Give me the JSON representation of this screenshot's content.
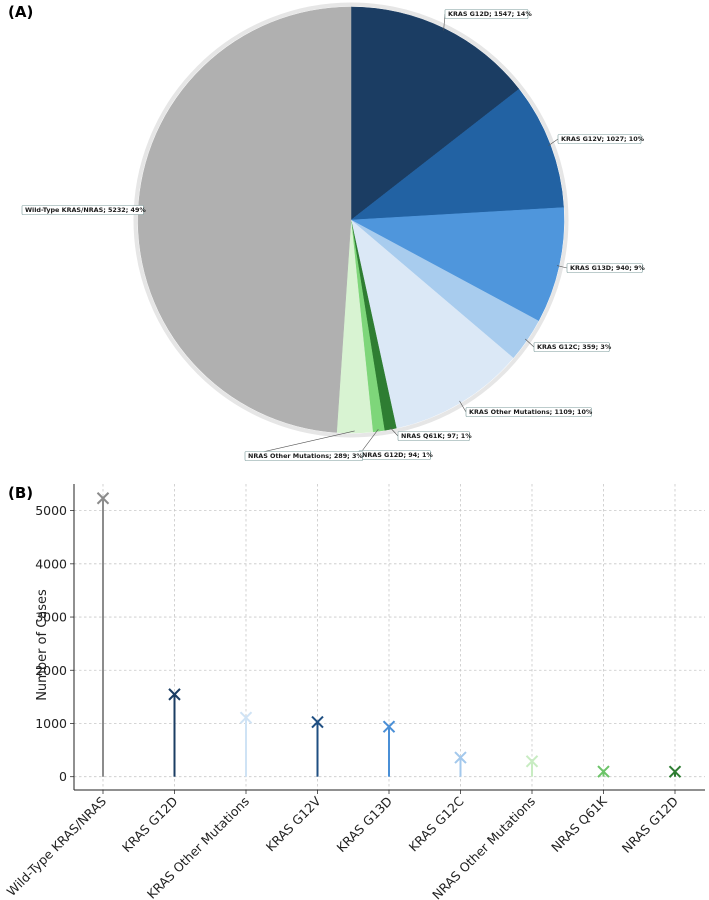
{
  "figure": {
    "panel_a_label": "(A)",
    "panel_b_label": "(B)"
  },
  "chart_data": [
    {
      "type": "pie",
      "title": "",
      "slices": [
        {
          "name": "KRAS G12D",
          "value": 1547,
          "percent": 14,
          "label": "KRAS G12D; 1547; 14%",
          "color": "#1b3d63"
        },
        {
          "name": "KRAS G12V",
          "value": 1027,
          "percent": 10,
          "label": "KRAS G12V; 1027; 10%",
          "color": "#2262a3"
        },
        {
          "name": "KRAS G13D",
          "value": 940,
          "percent": 9,
          "label": "KRAS G13D; 940; 9%",
          "color": "#4f96dc"
        },
        {
          "name": "KRAS G12C",
          "value": 359,
          "percent": 3,
          "label": "KRAS G12C; 359; 3%",
          "color": "#a8ccee"
        },
        {
          "name": "KRAS Other Mutations",
          "value": 1109,
          "percent": 10,
          "label": "KRAS Other Mutations; 1109; 10%",
          "color": "#dbe8f6"
        },
        {
          "name": "NRAS Q61K",
          "value": 97,
          "percent": 1,
          "label": "NRAS Q61K; 97; 1%",
          "color": "#2e7d32"
        },
        {
          "name": "NRAS G12D",
          "value": 94,
          "percent": 1,
          "label": "NRAS G12D; 94; 1%",
          "color": "#7ed67a"
        },
        {
          "name": "NRAS Other Mutations",
          "value": 289,
          "percent": 3,
          "label": "NRAS Other Mutations; 289; 3%",
          "color": "#d8f3d2"
        },
        {
          "name": "Wild-Type KRAS/NRAS",
          "value": 5232,
          "percent": 49,
          "label": "Wild-Type KRAS/NRAS; 5232; 49%",
          "color": "#b0b0b0"
        }
      ]
    },
    {
      "type": "stem",
      "title": "",
      "xlabel": "",
      "ylabel": "Number of Cases",
      "ylim": [
        -250,
        5500
      ],
      "yticks": [
        "0",
        "1000",
        "2000",
        "3000",
        "4000",
        "5000"
      ],
      "ytick_values": [
        0,
        1000,
        2000,
        3000,
        4000,
        5000
      ],
      "grid": true,
      "marker": "x",
      "points": [
        {
          "category": "Wild-Type KRAS/NRAS",
          "value": 5232,
          "color": "#8c8c8c"
        },
        {
          "category": "KRAS G12D",
          "value": 1547,
          "color": "#1b3d63"
        },
        {
          "category": "KRAS Other Mutations",
          "value": 1109,
          "color": "#cfe3f5"
        },
        {
          "category": "KRAS G12V",
          "value": 1027,
          "color": "#1f4f82"
        },
        {
          "category": "KRAS G13D",
          "value": 940,
          "color": "#4a8fd6"
        },
        {
          "category": "KRAS G12C",
          "value": 359,
          "color": "#a3c8ec"
        },
        {
          "category": "NRAS Other Mutations",
          "value": 289,
          "color": "#c8ecc2"
        },
        {
          "category": "NRAS Q61K",
          "value": 97,
          "color": "#6cc468"
        },
        {
          "category": "NRAS G12D",
          "value": 94,
          "color": "#2e7d32"
        }
      ]
    }
  ]
}
